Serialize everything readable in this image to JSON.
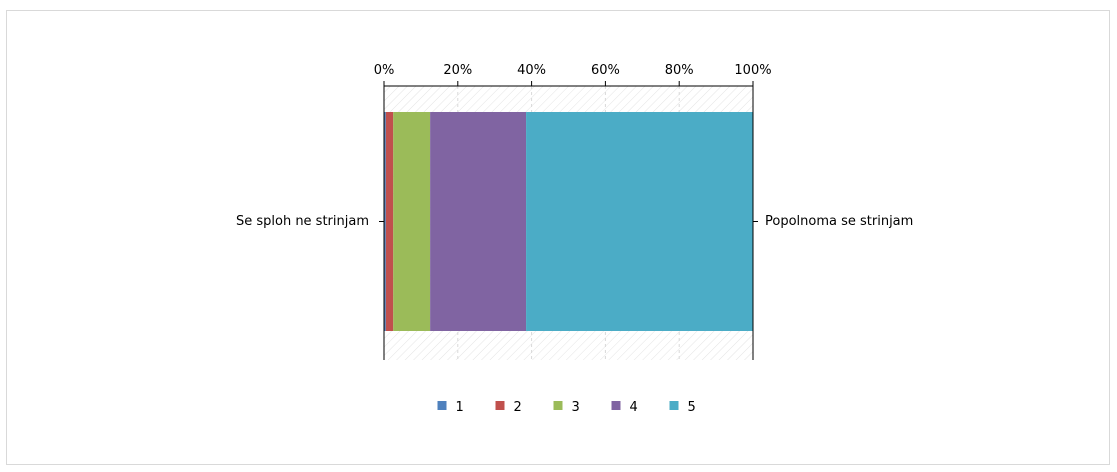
{
  "chart_data": {
    "type": "bar",
    "orientation": "horizontal",
    "stacked": true,
    "percent_stacked": true,
    "x_ticks": [
      "0%",
      "20%",
      "40%",
      "60%",
      "80%",
      "100%"
    ],
    "xlim": [
      0,
      100
    ],
    "left_label": "Se sploh ne strinjam",
    "right_label": "Popolnoma se strinjam",
    "series": [
      {
        "name": "1",
        "color": "#4f81bd",
        "value": 0.5
      },
      {
        "name": "2",
        "color": "#c0504d",
        "value": 2.0
      },
      {
        "name": "3",
        "color": "#9bbb59",
        "value": 10.0
      },
      {
        "name": "4",
        "color": "#8064a2",
        "value": 26.0
      },
      {
        "name": "5",
        "color": "#4bacc6",
        "value": 61.5
      }
    ],
    "legend_position": "bottom",
    "grid": true
  }
}
